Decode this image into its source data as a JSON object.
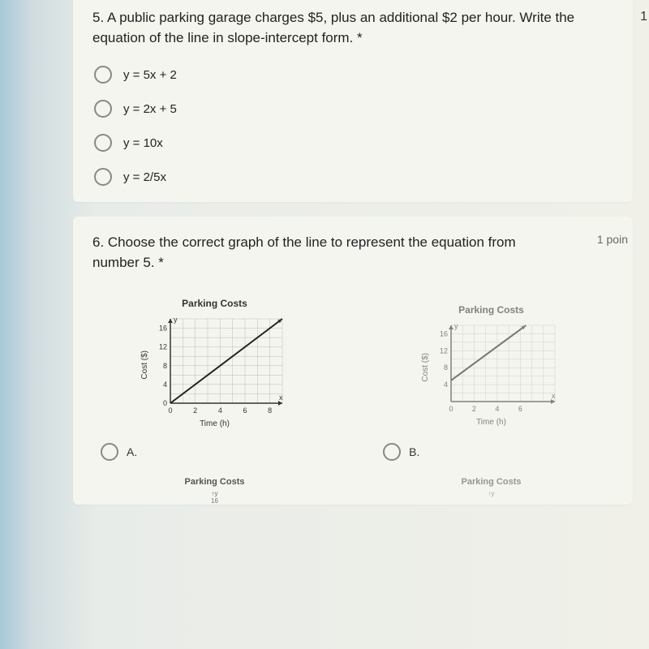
{
  "q5": {
    "text": "5. A public parking garage charges $5, plus an additional $2 per hour. Write the equation of the line in slope-intercept form. *",
    "options": [
      "y = 5x + 2",
      "y = 2x + 5",
      "y = 10x",
      "y = 2/5x"
    ]
  },
  "q6": {
    "text": "6. Choose the correct graph of the line to represent the equation from number 5. *",
    "points": "1 poin",
    "optA": "A.",
    "optB": "B."
  },
  "chartA": {
    "title": "Parking Costs",
    "ylabel": "Cost ($)",
    "xlabel": "Time (h)",
    "yticks": [
      0,
      4,
      8,
      12,
      16
    ],
    "xticks": [
      0,
      2,
      4,
      6,
      8
    ],
    "xlim": [
      0,
      9
    ],
    "ylim": [
      0,
      18
    ],
    "line": [
      [
        0,
        0
      ],
      [
        9,
        18
      ]
    ],
    "grid_color": "#bbb",
    "line_color": "#222",
    "bg": "#f5f5ef"
  },
  "chartB": {
    "title": "Parking Costs",
    "ylabel": "Cost ($)",
    "xlabel": "Time (h)",
    "yticks": [
      4,
      8,
      12,
      16
    ],
    "xticks": [
      0,
      2,
      4,
      6
    ],
    "xlim": [
      0,
      9
    ],
    "ylim": [
      0,
      18
    ],
    "line": [
      [
        0,
        5
      ],
      [
        6.5,
        18
      ]
    ],
    "grid_color": "#bbb",
    "line_color": "#222",
    "bg": "#f5f5ef"
  },
  "chartC": {
    "title": "Parking Costs"
  },
  "chartD": {
    "title": "Parking Costs"
  },
  "truncated_right": "1"
}
